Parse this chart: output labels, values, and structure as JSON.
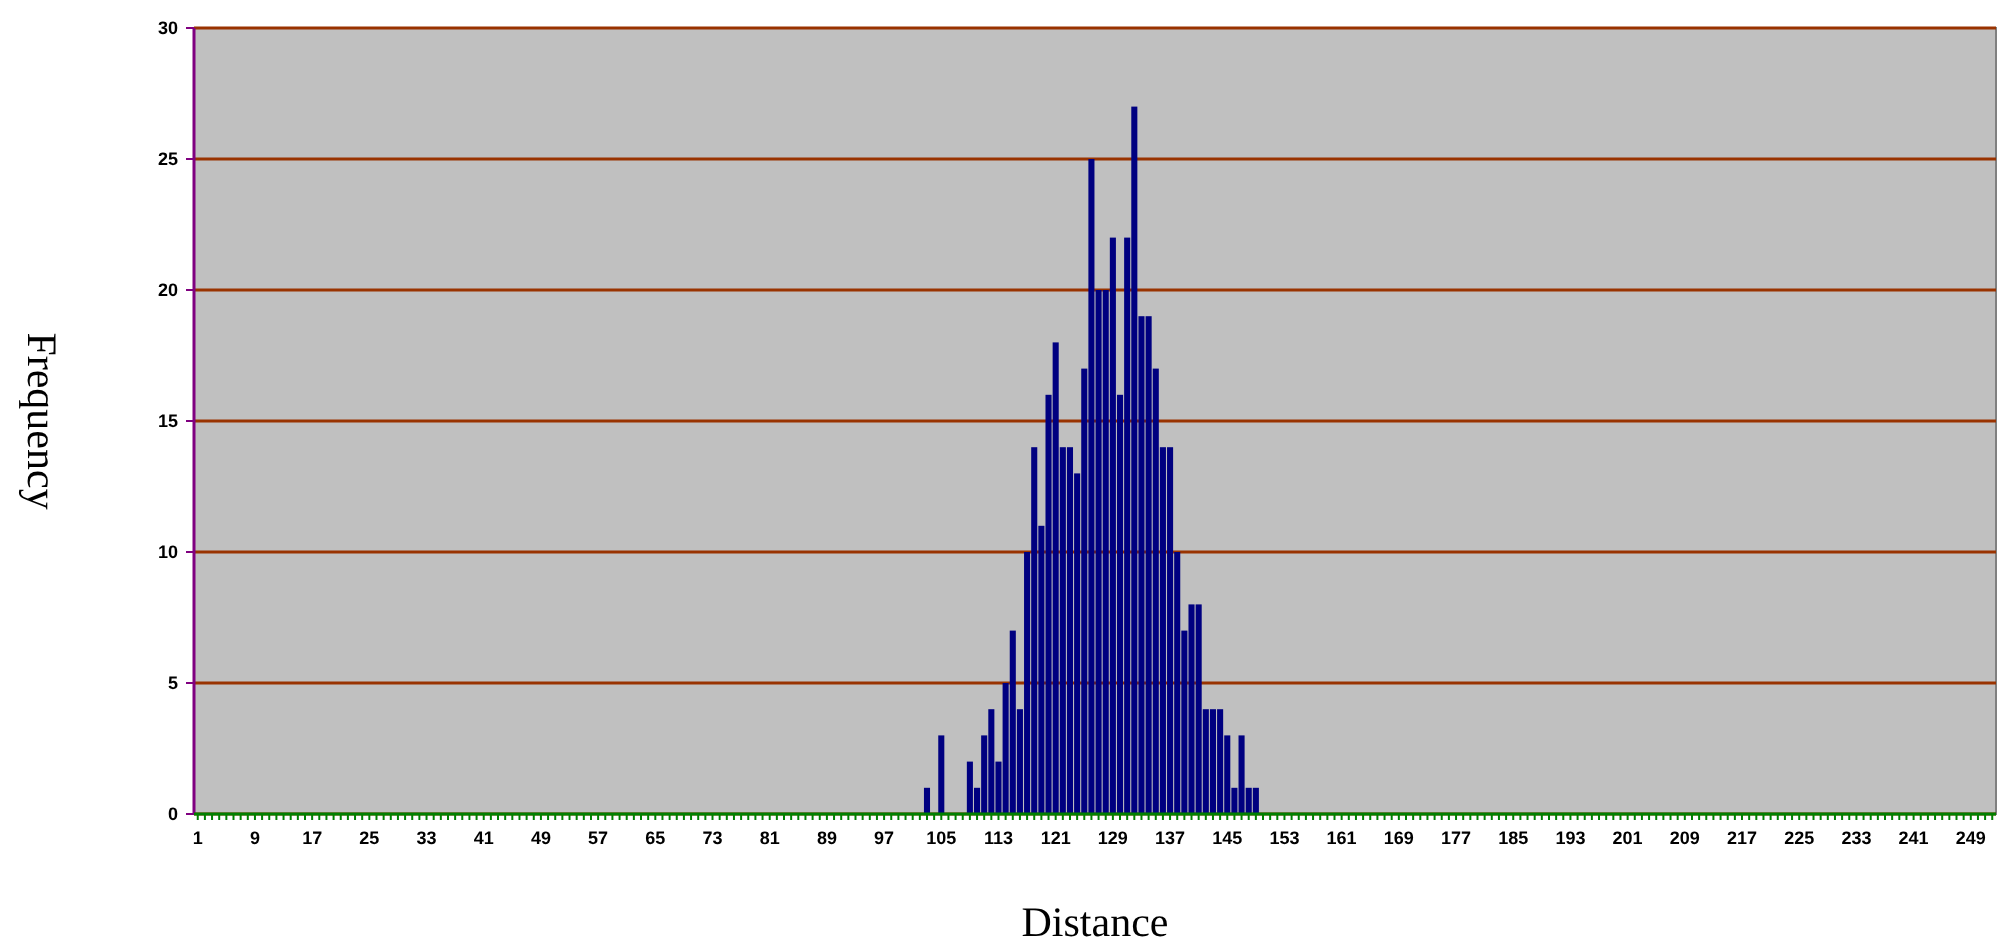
{
  "chart_data": {
    "type": "bar",
    "xlabel": "Distance",
    "ylabel": "Frequency",
    "color": "#000080",
    "ylim": [
      0,
      30
    ],
    "yticks": [
      0,
      5,
      10,
      15,
      20,
      25,
      30
    ],
    "grid": "y",
    "categories": [
      "1",
      null,
      null,
      null,
      null,
      null,
      null,
      null,
      "9",
      null,
      null,
      null,
      null,
      null,
      null,
      null,
      "17",
      null,
      null,
      null,
      null,
      null,
      null,
      null,
      "25",
      null,
      null,
      null,
      null,
      null,
      null,
      null,
      "33",
      null,
      null,
      null,
      null,
      null,
      null,
      null,
      "41",
      null,
      null,
      null,
      null,
      null,
      null,
      null,
      "49",
      null,
      null,
      null,
      null,
      null,
      null,
      null,
      "57",
      null,
      null,
      null,
      null,
      null,
      null,
      null,
      "65",
      null,
      null,
      null,
      null,
      null,
      null,
      null,
      "73",
      null,
      null,
      null,
      null,
      null,
      null,
      null,
      "81",
      null,
      null,
      null,
      null,
      null,
      null,
      null,
      "89",
      null,
      null,
      null,
      null,
      null,
      null,
      null,
      "97",
      null,
      null,
      null,
      null,
      null,
      null,
      null,
      "105",
      null,
      null,
      null,
      null,
      null,
      null,
      null,
      "113",
      null,
      null,
      null,
      null,
      null,
      null,
      null,
      "121",
      null,
      null,
      null,
      null,
      null,
      null,
      null,
      "129",
      null,
      null,
      null,
      null,
      null,
      null,
      null,
      "137",
      null,
      null,
      null,
      null,
      null,
      null,
      null,
      "145",
      null,
      null,
      null,
      null,
      null,
      null,
      null,
      "153",
      null,
      null,
      null,
      null,
      null,
      null,
      null,
      "161",
      null,
      null,
      null,
      null,
      null,
      null,
      null,
      "169",
      null,
      null,
      null,
      null,
      null,
      null,
      null,
      "177",
      null,
      null,
      null,
      null,
      null,
      null,
      null,
      "185",
      null,
      null,
      null,
      null,
      null,
      null,
      null,
      "193",
      null,
      null,
      null,
      null,
      null,
      null,
      null,
      "201",
      null,
      null,
      null,
      null,
      null,
      null,
      null,
      "209",
      null,
      null,
      null,
      null,
      null,
      null,
      null,
      "217",
      null,
      null,
      null,
      null,
      null,
      null,
      null,
      "225",
      null,
      null,
      null,
      null,
      null,
      null,
      null,
      "233",
      null,
      null,
      null,
      null,
      null,
      null,
      null,
      "241",
      null,
      null,
      null,
      null,
      null,
      null,
      null,
      "249",
      null,
      null,
      null
    ],
    "values": [
      0,
      0,
      0,
      0,
      0,
      0,
      0,
      0,
      0,
      0,
      0,
      0,
      0,
      0,
      0,
      0,
      0,
      0,
      0,
      0,
      0,
      0,
      0,
      0,
      0,
      0,
      0,
      0,
      0,
      0,
      0,
      0,
      0,
      0,
      0,
      0,
      0,
      0,
      0,
      0,
      0,
      0,
      0,
      0,
      0,
      0,
      0,
      0,
      0,
      0,
      0,
      0,
      0,
      0,
      0,
      0,
      0,
      0,
      0,
      0,
      0,
      0,
      0,
      0,
      0,
      0,
      0,
      0,
      0,
      0,
      0,
      0,
      0,
      0,
      0,
      0,
      0,
      0,
      0,
      0,
      0,
      0,
      0,
      0,
      0,
      0,
      0,
      0,
      0,
      0,
      0,
      0,
      0,
      0,
      0,
      0,
      0,
      0,
      0,
      0,
      0,
      0,
      1,
      0,
      3,
      0,
      0,
      0,
      2,
      1,
      3,
      4,
      2,
      5,
      7,
      4,
      10,
      14,
      11,
      16,
      18,
      14,
      14,
      13,
      17,
      25,
      20,
      20,
      22,
      16,
      22,
      27,
      19,
      19,
      17,
      14,
      14,
      10,
      7,
      8,
      8,
      4,
      4,
      4,
      3,
      1,
      3,
      1,
      1,
      0,
      0,
      0,
      0,
      0,
      0,
      0,
      0,
      0,
      0,
      0,
      0,
      0,
      0,
      0,
      0,
      0,
      0,
      0,
      0,
      0,
      0,
      0,
      0,
      0,
      0,
      0,
      0,
      0,
      0,
      0,
      0,
      0,
      0,
      0,
      0,
      0,
      0,
      0,
      0,
      0,
      0,
      0,
      0,
      0,
      0,
      0,
      0,
      0,
      0,
      0,
      0,
      0,
      0,
      0,
      0,
      0,
      0,
      0,
      0,
      0,
      0,
      0,
      0,
      0,
      0,
      0,
      0,
      0,
      0,
      0,
      0,
      0,
      0,
      0,
      0,
      0,
      0,
      0,
      0,
      0,
      0,
      0,
      0,
      0,
      0,
      0,
      0,
      0,
      0,
      0,
      0,
      0,
      0,
      0,
      0,
      0,
      0,
      0,
      0,
      0,
      0,
      0
    ]
  }
}
